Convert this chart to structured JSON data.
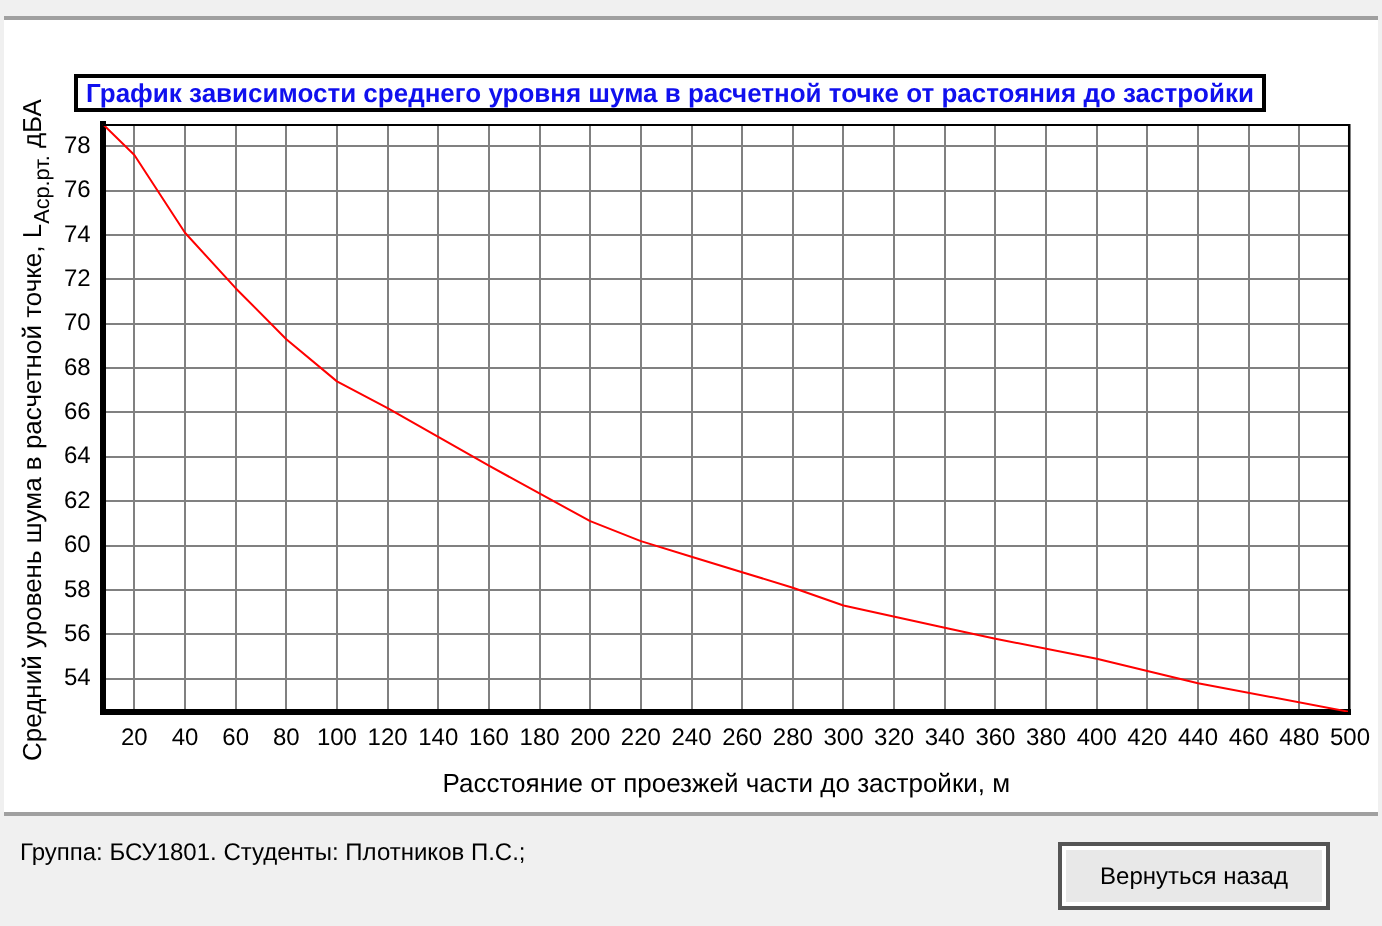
{
  "chart_data": {
    "type": "line",
    "title": "График зависимости среднего уровня шума в расчетной точке от растояния до застройки",
    "xlabel": "Расстояние от проезжей части до застройки, м",
    "ylabel": "Средний уровень шума в расчетной точке, L$_{Аср.рт.}$ дБА",
    "x": [
      7.5,
      20,
      40,
      60,
      80,
      100,
      120,
      140,
      160,
      200,
      220,
      240,
      260,
      280,
      300,
      340,
      360,
      400,
      440,
      500
    ],
    "series": [
      {
        "color": "#ff0000",
        "values": [
          79,
          77.6,
          74.1,
          71.6,
          69.3,
          67.4,
          66.2,
          64.9,
          63.6,
          61.1,
          60.2,
          59.5,
          58.8,
          58.1,
          57.3,
          56.3,
          55.8,
          54.9,
          53.8,
          52.5
        ]
      }
    ],
    "xlim": [
      7.5,
      500
    ],
    "xticks": [
      20,
      40,
      60,
      80,
      100,
      120,
      140,
      160,
      180,
      200,
      220,
      240,
      260,
      280,
      300,
      320,
      340,
      360,
      380,
      400,
      420,
      440,
      460,
      480,
      500
    ],
    "ylim": [
      52.5,
      79
    ],
    "yticks": [
      54,
      56,
      58,
      60,
      62,
      64,
      66,
      68,
      70,
      72,
      74,
      76,
      78
    ],
    "grid": true,
    "legend": false,
    "marker": "none",
    "line_style": "solid",
    "annotations": [
      "Группа: БСУ1801. Студенты: Плотников П.С.;",
      "Вернуться назад"
    ]
  }
}
